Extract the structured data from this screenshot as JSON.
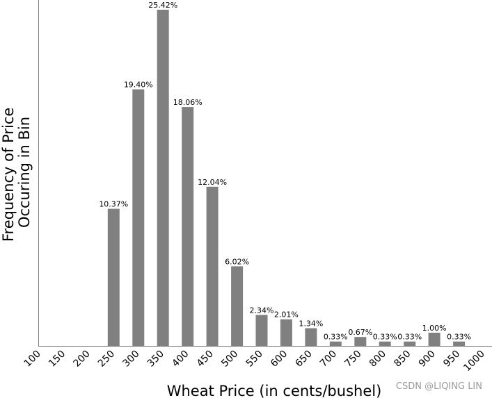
{
  "chart_data": {
    "type": "bar",
    "xlabel": "Wheat Price (in cents/bushel)",
    "ylabel_lines": [
      "Frequency of Price",
      "Occuring in Bin"
    ],
    "tick_labels": [
      "100",
      "150",
      "200",
      "250",
      "300",
      "350",
      "400",
      "450",
      "500",
      "550",
      "600",
      "650",
      "700",
      "750",
      "800",
      "850",
      "900",
      "950",
      "1000"
    ],
    "categories": [
      "250",
      "300",
      "350",
      "400",
      "450",
      "500",
      "550",
      "600",
      "650",
      "700",
      "750",
      "800",
      "850",
      "900",
      "950"
    ],
    "values": [
      10.37,
      19.4,
      25.42,
      18.06,
      12.04,
      6.02,
      2.34,
      2.01,
      1.34,
      0.33,
      0.67,
      0.33,
      0.33,
      1.0,
      0.33
    ],
    "value_labels": [
      "10.37%",
      "19.40%",
      "25.42%",
      "18.06%",
      "12.04%",
      "6.02%",
      "2.34%",
      "2.01%",
      "1.34%",
      "0.33%",
      "0.67%",
      "0.33%",
      "0.33%",
      "1.00%",
      "0.33%"
    ],
    "xlim": [
      100,
      1000
    ],
    "bar_color": "#808080"
  },
  "watermark": "CSDN @LIQING LIN"
}
